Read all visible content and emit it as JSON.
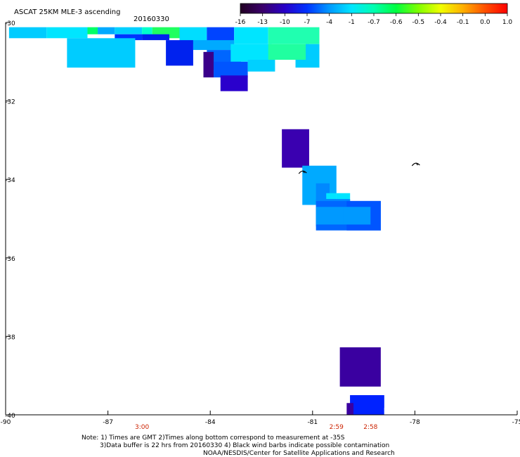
{
  "chart_data": {
    "type": "heatmap",
    "title": "ASCAT 25KM MLE-3 ascending",
    "date": "20160330",
    "xlim": [
      -90,
      -75
    ],
    "ylim": [
      -40,
      -30
    ],
    "x_ticks": [
      -90,
      -87,
      -84,
      -81,
      -78,
      -75
    ],
    "y_ticks": [
      -30,
      -32,
      -34,
      -36,
      -38,
      -40
    ],
    "x_tick_labels": [
      "-90",
      "-87",
      "-84",
      "-81",
      "-78",
      "-75"
    ],
    "y_tick_labels": [
      "-30",
      "-32",
      "-34",
      "-36",
      "-38",
      "-40"
    ],
    "grid": false,
    "colorbar": {
      "placement": "top-right",
      "labels": [
        "-16",
        "-13",
        "-10",
        "-7",
        "-4",
        "-1",
        "-0.7",
        "-0.6",
        "-0.5",
        "-0.4",
        "-0.1",
        "0.0",
        "1.0"
      ],
      "colors": [
        "#220022",
        "#3a006a",
        "#2800c8",
        "#0033ff",
        "#0099ff",
        "#00e5ff",
        "#00ffb0",
        "#00ff40",
        "#80ff00",
        "#f0ff00",
        "#ffb000",
        "#ff5000",
        "#ff0000"
      ]
    },
    "swath_times": [
      {
        "label": "3:00",
        "lon": -86.0
      },
      {
        "label": "2:59",
        "lon": -80.3
      },
      {
        "label": "2:58",
        "lon": -79.3
      }
    ],
    "cells": [
      {
        "lon": [
          -89.9,
          -88.8
        ],
        "lat": [
          -30.12,
          -30.4
        ],
        "color": "#00ccff"
      },
      {
        "lon": [
          -88.8,
          -87.6
        ],
        "lat": [
          -30.12,
          -30.4
        ],
        "color": "#00e5ff"
      },
      {
        "lon": [
          -87.6,
          -87.3
        ],
        "lat": [
          -30.12,
          -30.3
        ],
        "color": "#00ff66"
      },
      {
        "lon": [
          -87.3,
          -86.8
        ],
        "lat": [
          -30.12,
          -30.3
        ],
        "color": "#00aaff"
      },
      {
        "lon": [
          -86.8,
          -86.0
        ],
        "lat": [
          -30.12,
          -30.3
        ],
        "color": "#00d0ff"
      },
      {
        "lon": [
          -86.0,
          -85.7
        ],
        "lat": [
          -30.12,
          -30.4
        ],
        "color": "#00ffcc"
      },
      {
        "lon": [
          -85.7,
          -84.9
        ],
        "lat": [
          -30.12,
          -30.4
        ],
        "color": "#20ff60"
      },
      {
        "lon": [
          -84.9,
          -84.1
        ],
        "lat": [
          -30.12,
          -30.55
        ],
        "color": "#00ddff"
      },
      {
        "lon": [
          -84.1,
          -83.3
        ],
        "lat": [
          -30.12,
          -30.55
        ],
        "color": "#0044ff"
      },
      {
        "lon": [
          -83.3,
          -82.3
        ],
        "lat": [
          -30.12,
          -30.55
        ],
        "color": "#00e5ff"
      },
      {
        "lon": [
          -82.3,
          -80.8
        ],
        "lat": [
          -30.12,
          -30.55
        ],
        "color": "#20ffb0"
      },
      {
        "lon": [
          -86.8,
          -86.0
        ],
        "lat": [
          -30.3,
          -30.45
        ],
        "color": "#0033ff"
      },
      {
        "lon": [
          -86.0,
          -85.2
        ],
        "lat": [
          -30.3,
          -30.45
        ],
        "color": "#0022ee"
      },
      {
        "lon": [
          -88.2,
          -86.2
        ],
        "lat": [
          -30.4,
          -31.15
        ],
        "color": "#00ccff"
      },
      {
        "lon": [
          -85.3,
          -84.5
        ],
        "lat": [
          -30.45,
          -31.1
        ],
        "color": "#0022ee"
      },
      {
        "lon": [
          -84.5,
          -83.3
        ],
        "lat": [
          -30.45,
          -30.7
        ],
        "color": "#00aaff"
      },
      {
        "lon": [
          -84.1,
          -83.1
        ],
        "lat": [
          -30.7,
          -31.2
        ],
        "color": "#0066ff"
      },
      {
        "lon": [
          -83.4,
          -82.2
        ],
        "lat": [
          -30.55,
          -31.0
        ],
        "color": "#00e5ff"
      },
      {
        "lon": [
          -82.3,
          -81.1
        ],
        "lat": [
          -30.55,
          -30.95
        ],
        "color": "#20ffa0"
      },
      {
        "lon": [
          -81.2,
          -80.8
        ],
        "lat": [
          -30.55,
          -30.95
        ],
        "color": "#00ccff"
      },
      {
        "lon": [
          -84.2,
          -83.9
        ],
        "lat": [
          -30.75,
          -31.4
        ],
        "color": "#3a008a"
      },
      {
        "lon": [
          -83.9,
          -82.9
        ],
        "lat": [
          -31.0,
          -31.4
        ],
        "color": "#0055ff"
      },
      {
        "lon": [
          -82.9,
          -82.1
        ],
        "lat": [
          -30.95,
          -31.25
        ],
        "color": "#00d0ff"
      },
      {
        "lon": [
          -81.5,
          -80.8
        ],
        "lat": [
          -30.95,
          -31.15
        ],
        "color": "#00ccff"
      },
      {
        "lon": [
          -83.7,
          -82.9
        ],
        "lat": [
          -31.35,
          -31.75
        ],
        "color": "#2a00cc"
      },
      {
        "lon": [
          -81.9,
          -81.1
        ],
        "lat": [
          -32.72,
          -33.7
        ],
        "color": "#3a00b0"
      },
      {
        "lon": [
          -81.3,
          -80.3
        ],
        "lat": [
          -33.65,
          -34.65
        ],
        "color": "#00aaff"
      },
      {
        "lon": [
          -80.9,
          -80.5
        ],
        "lat": [
          -34.1,
          -34.55
        ],
        "color": "#0088ff"
      },
      {
        "lon": [
          -80.6,
          -80.3
        ],
        "lat": [
          -34.35,
          -34.5
        ],
        "color": "#00e5ff"
      },
      {
        "lon": [
          -80.3,
          -79.9
        ],
        "lat": [
          -34.35,
          -34.6
        ],
        "color": "#00e5ff"
      },
      {
        "lon": [
          -80.9,
          -79.9
        ],
        "lat": [
          -34.5,
          -35.2
        ],
        "color": "#0088ff"
      },
      {
        "lon": [
          -80.3,
          -79.9
        ],
        "lat": [
          -34.6,
          -35.2
        ],
        "color": "#00aaff"
      },
      {
        "lon": [
          -80.1,
          -79.9
        ],
        "lat": [
          -35.05,
          -35.2
        ],
        "color": "#00e5ff"
      },
      {
        "lon": [
          -80.9,
          -79.0
        ],
        "lat": [
          -34.55,
          -35.3
        ],
        "color": "#0066ff"
      },
      {
        "lon": [
          -80.0,
          -79.0
        ],
        "lat": [
          -34.55,
          -35.3
        ],
        "color": "#0055ff"
      },
      {
        "lon": [
          -80.9,
          -80.1
        ],
        "lat": [
          -34.7,
          -35.15
        ],
        "color": "#0099ff"
      },
      {
        "lon": [
          -80.1,
          -79.3
        ],
        "lat": [
          -34.7,
          -35.15
        ],
        "color": "#0099ff"
      },
      {
        "lon": [
          -80.2,
          -79.0
        ],
        "lat": [
          -38.28,
          -39.28
        ],
        "color": "#3a00a0"
      },
      {
        "lon": [
          -79.9,
          -78.9
        ],
        "lat": [
          -39.5,
          -39.82
        ],
        "color": "#0022ff"
      },
      {
        "lon": [
          -79.9,
          -78.9
        ],
        "lat": [
          -39.5,
          -40.0
        ],
        "color": "#0022ff"
      },
      {
        "lon": [
          -80.0,
          -79.8
        ],
        "lat": [
          -39.7,
          -40.0
        ],
        "color": "#3a00a0"
      }
    ],
    "barbs": [
      {
        "lon": -81.3,
        "lat": -33.8
      },
      {
        "lon": -77.98,
        "lat": -33.6
      }
    ],
    "notes": [
      "Note: 1) Times are GMT 2)Times along bottom correspond to measurement at -35S",
      "3)Data buffer is 22 hrs from 20160330 4) Black wind barbs indicate possible contamination",
      "NOAA/NESDIS/Center for Satellite Applications and Research"
    ]
  }
}
